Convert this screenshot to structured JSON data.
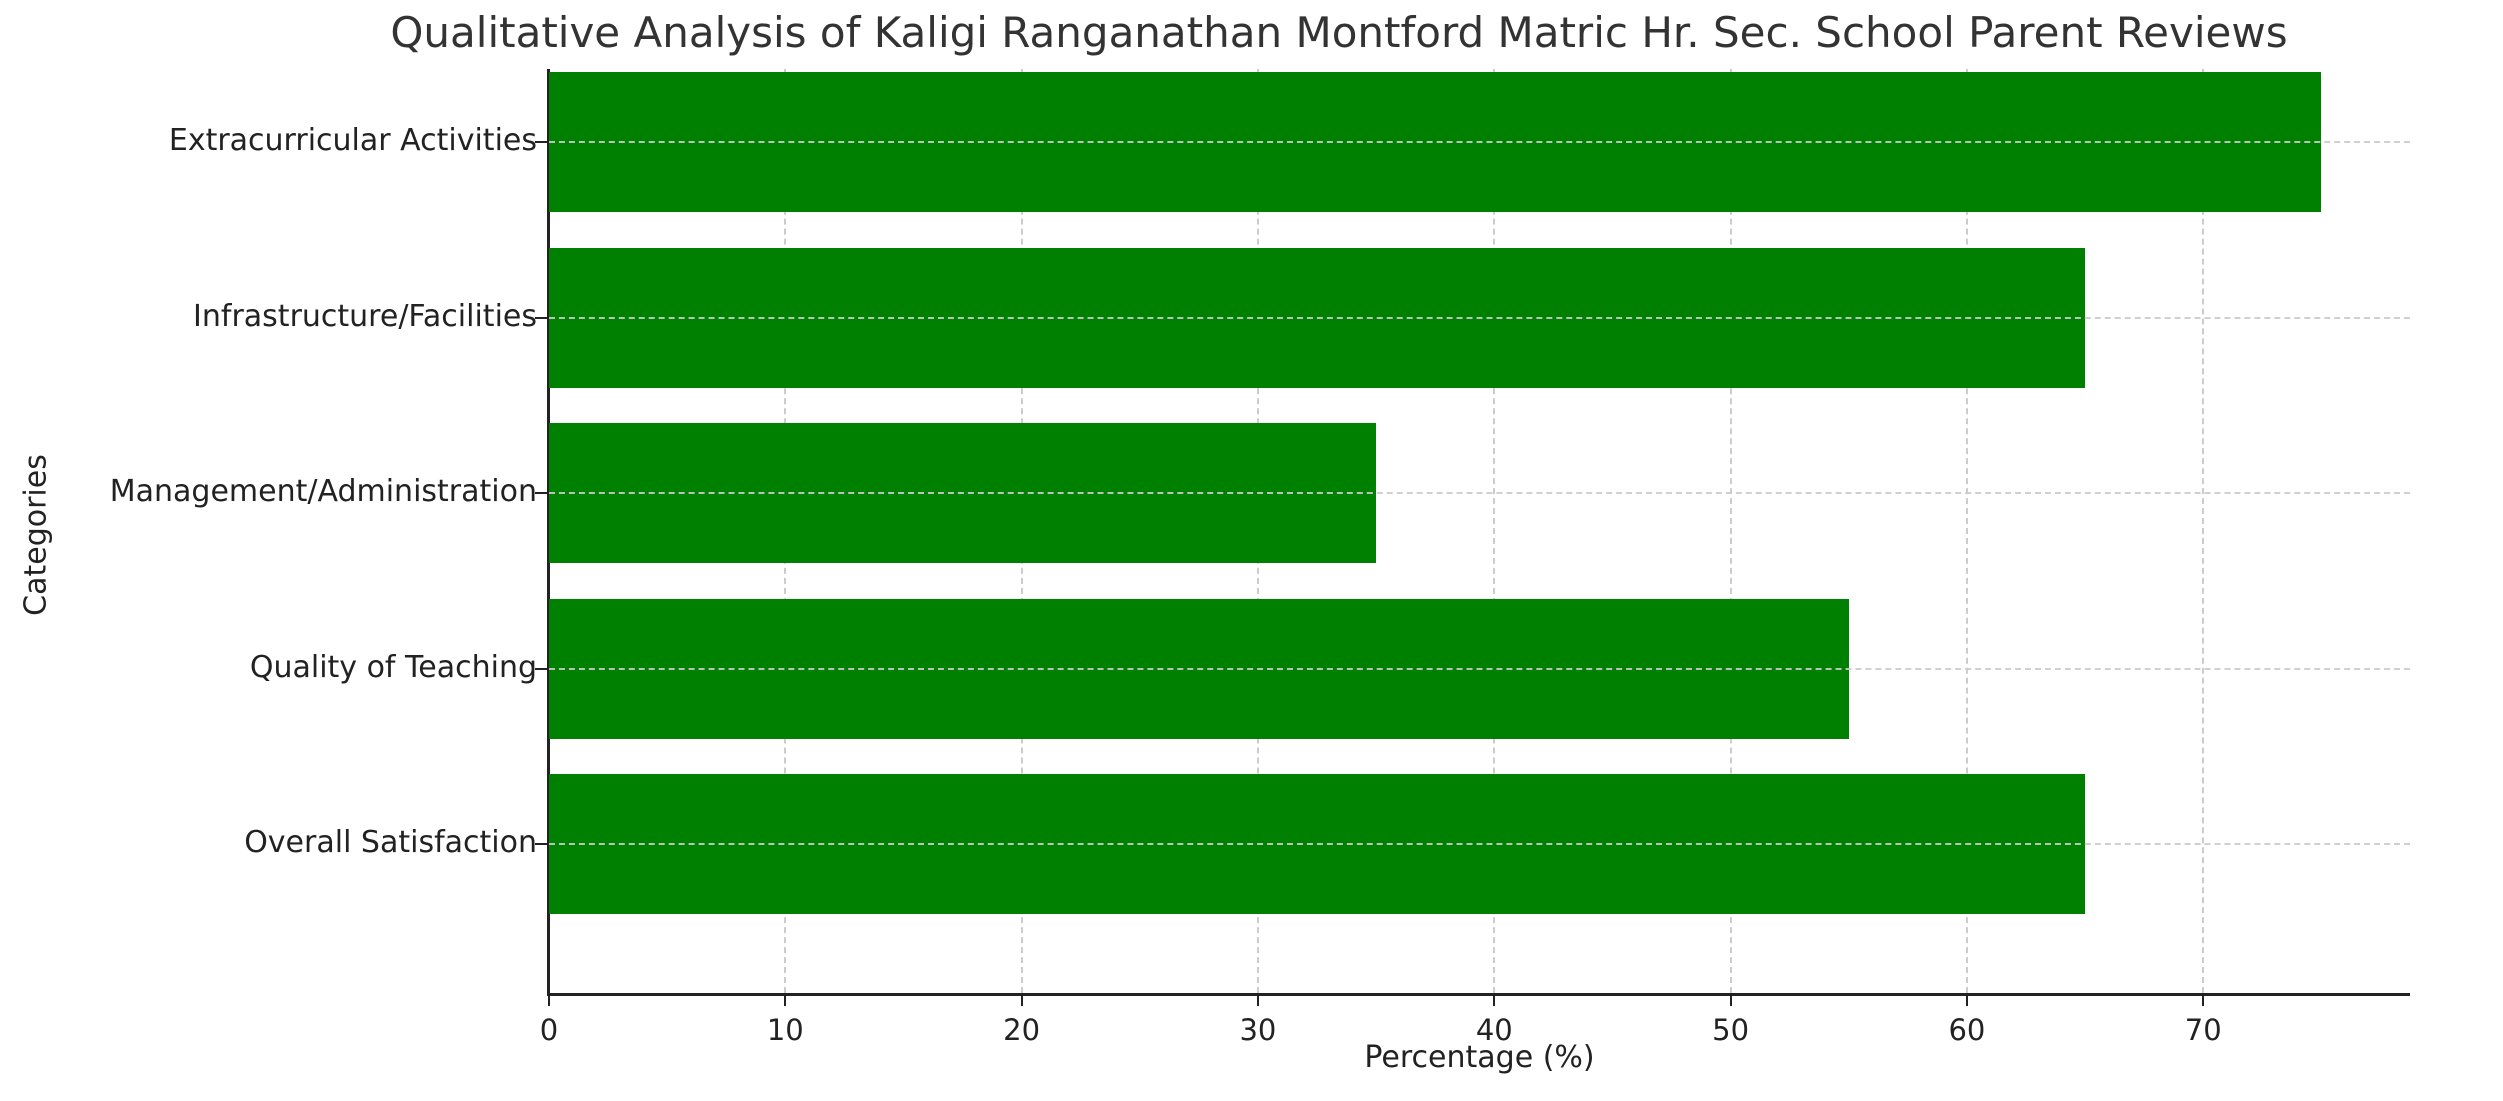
{
  "chart_data": {
    "type": "bar",
    "orientation": "horizontal",
    "title": "Qualitative Analysis of Kaligi Ranganathan Montford Matric Hr. Sec. School Parent Reviews",
    "xlabel": "Percentage (%)",
    "ylabel": "Categories",
    "categories": [
      "Overall Satisfaction",
      "Quality of Teaching",
      "Management/Administration",
      "Infrastructure/Facilities",
      "Extracurricular Activities"
    ],
    "values": [
      65,
      55,
      35,
      65,
      75
    ],
    "xlim": [
      0,
      78.75
    ],
    "xticks": [
      "0",
      "10",
      "20",
      "30",
      "40",
      "50",
      "60",
      "70"
    ],
    "grid": true,
    "grid_style": "dashed",
    "bar_color": "#008000",
    "legend": null
  }
}
